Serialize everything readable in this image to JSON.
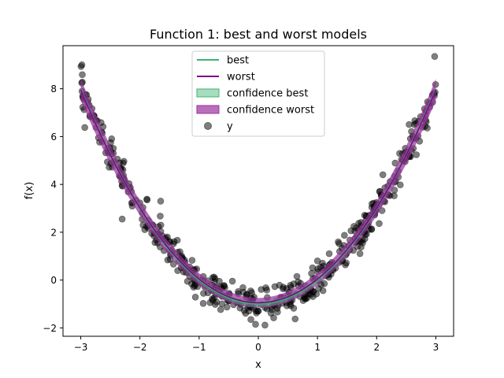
{
  "chart_data": {
    "type": "scatter",
    "title": "Function 1: best and worst models",
    "xlabel": "x",
    "ylabel": "f(x)",
    "xlim": [
      -3.3,
      3.3
    ],
    "ylim": [
      -2.35,
      9.8
    ],
    "x_ticks": [
      -3,
      -2,
      -1,
      0,
      1,
      2,
      3
    ],
    "y_ticks": [
      -2,
      0,
      2,
      4,
      6,
      8
    ],
    "grid": false,
    "legend_position": "top-center",
    "colors": {
      "best": "#3cb371",
      "worst": "#800080",
      "confidence_best": "#3cb371",
      "confidence_worst": "#9b30a0",
      "points": "#000000"
    },
    "legend": [
      {
        "label": "best",
        "kind": "line",
        "color": "#3cb371"
      },
      {
        "label": "worst",
        "kind": "line",
        "color": "#800080"
      },
      {
        "label": "confidence best",
        "kind": "patch",
        "color": "#3cb371"
      },
      {
        "label": "confidence worst",
        "kind": "patch",
        "color": "#9b30a0"
      },
      {
        "label": "y",
        "kind": "marker",
        "color": "#000000"
      }
    ],
    "series": [
      {
        "name": "best",
        "kind": "line",
        "function": "x^2 - 1",
        "x_range": [
          -3,
          3
        ],
        "confidence_halfwidth": 0.12
      },
      {
        "name": "worst",
        "kind": "line",
        "function": "0.99*x^2 - 0.95",
        "x_range": [
          -3,
          3
        ],
        "confidence_halfwidth": [
          0.45,
          0.3,
          0.25,
          0.2,
          0.25,
          0.3,
          0.45
        ],
        "confidence_at_x": [
          -3,
          -2,
          -1,
          0,
          1,
          2,
          3
        ]
      },
      {
        "name": "y",
        "kind": "scatter",
        "model": "x^2 - 1 + noise",
        "count": 500,
        "x_range": [
          -3,
          3
        ],
        "noise_sd": 0.35,
        "highlighted_points": [
          {
            "x": -2.98,
            "y": 9.0
          },
          {
            "x": 2.98,
            "y": 9.35
          },
          {
            "x": -2.3,
            "y": 2.55
          },
          {
            "x": 1.0,
            "y": 0.8
          },
          {
            "x": -1.65,
            "y": 3.3
          }
        ]
      }
    ]
  }
}
